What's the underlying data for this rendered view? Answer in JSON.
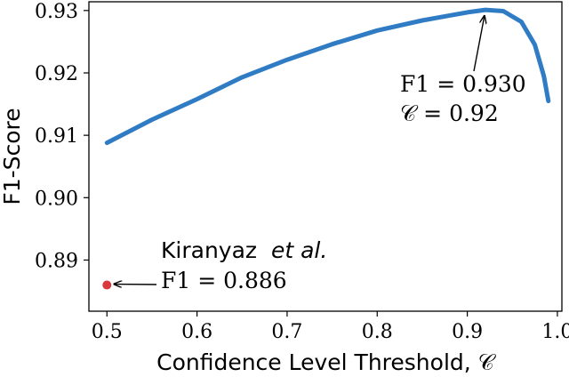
{
  "chart_data": {
    "type": "line",
    "title": "",
    "xlabel": "Confidence Level Threshold, 𝒞",
    "ylabel": "F1-Score",
    "xlim": [
      0.48,
      1.005
    ],
    "ylim": [
      0.8818,
      0.9314
    ],
    "xticks": [
      0.5,
      0.6,
      0.7,
      0.8,
      0.9,
      1.0
    ],
    "xtick_labels": [
      "0.5",
      "0.6",
      "0.7",
      "0.8",
      "0.9",
      "1.0"
    ],
    "yticks": [
      0.89,
      0.9,
      0.91,
      0.92,
      0.93
    ],
    "ytick_labels": [
      "0.89",
      "0.90",
      "0.91",
      "0.92",
      "0.93"
    ],
    "grid": false,
    "series": [
      {
        "color": "#2f7bc4",
        "x": [
          0.5,
          0.55,
          0.6,
          0.65,
          0.7,
          0.75,
          0.8,
          0.85,
          0.9,
          0.92,
          0.94,
          0.96,
          0.975,
          0.985,
          0.99
        ],
        "y": [
          0.9088,
          0.9125,
          0.9158,
          0.9193,
          0.9221,
          0.9246,
          0.9268,
          0.9284,
          0.9297,
          0.9301,
          0.9299,
          0.9282,
          0.9245,
          0.9195,
          0.9155
        ]
      }
    ],
    "points": [
      {
        "x": 0.5,
        "y": 0.886,
        "color": "#d9393e"
      }
    ],
    "annotations": [
      {
        "id": "best",
        "lines": [
          "F1 = 0.930",
          "𝒞 = 0.92"
        ],
        "target": [
          0.92,
          0.93
        ]
      },
      {
        "id": "kiranyaz",
        "name": "Kiranyaz",
        "name_suffix": "et al.",
        "line2": "F1 = 0.886",
        "target": [
          0.5,
          0.886
        ]
      }
    ]
  }
}
